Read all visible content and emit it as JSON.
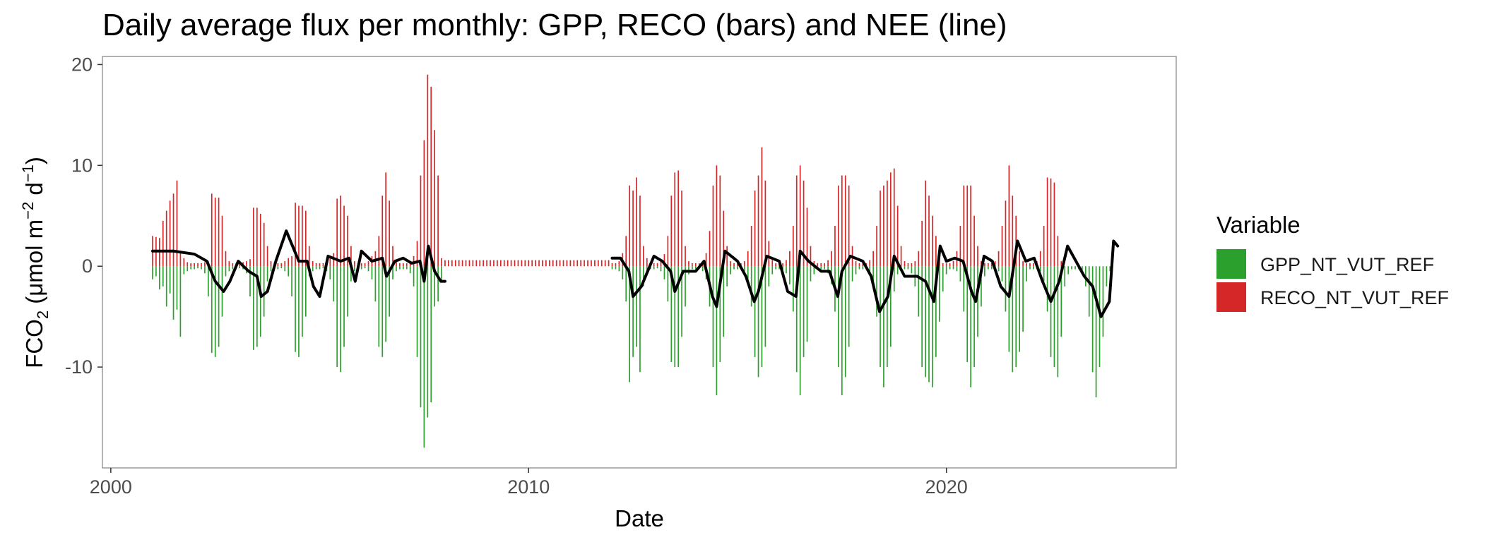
{
  "chart_data": {
    "type": "bar",
    "title": "Daily average flux per monthly: GPP, RECO (bars) and NEE (line)",
    "xlabel": "Date",
    "ylabel": {
      "main": "FCO",
      "sub_2": "2",
      "unit_open": " (μmol m",
      "sup_minus2": "−2",
      "unit_mid": " d",
      "sup_minus1": "−1",
      "unit_close": ")"
    },
    "xlim": [
      1999.8,
      2025.5
    ],
    "ylim": [
      -20.0,
      20.8
    ],
    "x_ticks": [
      2000,
      2010,
      2020
    ],
    "x_tick_labels": [
      "2000",
      "2010",
      "2020"
    ],
    "y_ticks": [
      -10,
      0,
      10,
      20
    ],
    "y_tick_labels": [
      "-10",
      "0",
      "10",
      "20"
    ],
    "grid": false,
    "legend": {
      "title": "Variable",
      "position": "right",
      "entries": [
        {
          "name": "GPP_NT_VUT_REF",
          "color": "#2ca02c"
        },
        {
          "name": "RECO_NT_VUT_REF",
          "color": "#d62728"
        }
      ]
    },
    "series": [
      {
        "name": "GPP_NT_VUT_REF",
        "color": "#2ca02c",
        "style": "monthly-bars",
        "x_start": 2001.0,
        "x_step": 0.08333,
        "values": [
          -1.3,
          -1.0,
          -2.3,
          -2.0,
          -4.0,
          -2.7,
          -5.3,
          -4.3,
          -7.0,
          -0.8,
          -0.5,
          -0.3,
          -0.3,
          -0.2,
          -0.3,
          -0.7,
          -3.0,
          -8.6,
          -9.0,
          -8.0,
          -5.0,
          -1.0,
          -0.5,
          -0.3,
          -0.3,
          -0.2,
          -0.3,
          -0.7,
          -3.0,
          -8.3,
          -8.0,
          -7.0,
          -5.0,
          -1.5,
          -0.5,
          -0.3,
          -0.3,
          -0.2,
          -0.5,
          -1.0,
          -3.0,
          -8.5,
          -9.0,
          -7.0,
          -5.0,
          -1.0,
          -0.5,
          -0.3,
          -0.3,
          -0.2,
          -0.5,
          -1.3,
          -3.5,
          -10.0,
          -10.5,
          -8.0,
          -5.0,
          -1.5,
          -0.5,
          -0.3,
          -0.3,
          -0.2,
          -0.5,
          -1.3,
          -3.5,
          -8.0,
          -9.0,
          -7.5,
          -5.0,
          -1.3,
          -0.5,
          -0.3,
          -0.3,
          -0.3,
          -0.7,
          -2.0,
          -9.0,
          -14.0,
          -18.0,
          -15.0,
          -13.5,
          -4.0,
          -3.5,
          -1.5,
          0.0,
          0.0,
          0.0,
          0.0,
          0.0,
          0.0,
          0.0,
          0.0,
          0.0,
          0.0,
          0.0,
          0.0,
          0.0,
          0.0,
          0.0,
          0.0,
          0.0,
          0.0,
          0.0,
          0.0,
          0.0,
          0.0,
          0.0,
          0.0,
          0.0,
          0.0,
          0.0,
          0.0,
          0.0,
          0.0,
          0.0,
          0.0,
          0.0,
          0.0,
          0.0,
          0.0,
          0.0,
          0.0,
          0.0,
          0.0,
          0.0,
          0.0,
          0.0,
          0.0,
          0.0,
          0.0,
          0.0,
          0.0,
          -0.3,
          -0.3,
          -0.5,
          -1.3,
          -3.5,
          -11.5,
          -9.0,
          -8.0,
          -10.5,
          -2.0,
          -0.8,
          -0.3,
          -0.3,
          -0.2,
          -0.5,
          -1.3,
          -3.5,
          -9.5,
          -10.0,
          -10.0,
          -7.0,
          -4.0,
          -0.8,
          -0.3,
          -0.3,
          -0.3,
          -0.5,
          -1.3,
          -4.0,
          -10.0,
          -12.8,
          -9.5,
          -7.0,
          -2.0,
          -0.8,
          -0.3,
          -0.3,
          -0.2,
          -0.5,
          -1.5,
          -4.0,
          -9.0,
          -11.0,
          -10.0,
          -8.0,
          -2.0,
          -0.8,
          -0.3,
          -0.3,
          -0.3,
          -0.7,
          -1.8,
          -4.5,
          -10.5,
          -12.8,
          -9.0,
          -7.5,
          -1.5,
          -0.8,
          -0.3,
          -0.3,
          -0.3,
          -0.7,
          -1.8,
          -4.5,
          -10.0,
          -12.8,
          -11.0,
          -8.0,
          -1.5,
          -0.8,
          -0.3,
          -0.3,
          -0.3,
          -0.7,
          -2.0,
          -5.0,
          -10.0,
          -12.0,
          -10.0,
          -8.0,
          -2.5,
          -0.8,
          -0.3,
          -0.3,
          -0.3,
          -0.7,
          -2.0,
          -5.0,
          -10.0,
          -11.0,
          -11.5,
          -12.0,
          -9.0,
          -5.5,
          -2.5,
          -0.8,
          -0.3,
          -0.3,
          -0.5,
          -1.5,
          -4.5,
          -9.5,
          -12.0,
          -10.0,
          -7.0,
          -4.0,
          -1.0,
          -0.3,
          -0.3,
          -0.3,
          -0.5,
          -1.5,
          -4.5,
          -8.5,
          -10.5,
          -10.0,
          -8.5,
          -6.5,
          -1.5,
          -0.3,
          -0.3,
          -0.3,
          -0.5,
          -1.5,
          -4.5,
          -9.0,
          -10.0,
          -11.0,
          -7.0,
          -2.0,
          -0.8,
          -0.3,
          -0.3,
          -0.3,
          -0.5,
          -2.0,
          -5.0,
          -10.5,
          -13.0,
          -10.0,
          -7.0,
          -2.0,
          -0.5
        ]
      },
      {
        "name": "RECO_NT_VUT_REF",
        "color": "#d62728",
        "style": "monthly-bars",
        "x_start": 2001.0,
        "x_step": 0.08333,
        "values": [
          3.0,
          2.9,
          2.8,
          4.5,
          5.5,
          6.5,
          7.2,
          8.5,
          1.5,
          0.8,
          0.4,
          0.3,
          0.3,
          0.3,
          0.3,
          0.4,
          0.5,
          7.2,
          6.8,
          6.8,
          5.0,
          1.5,
          0.5,
          0.3,
          0.3,
          0.3,
          0.4,
          0.5,
          0.7,
          5.8,
          5.8,
          5.2,
          4.3,
          2.0,
          0.5,
          0.4,
          0.3,
          0.3,
          0.5,
          0.8,
          1.0,
          6.3,
          6.0,
          6.0,
          5.5,
          2.0,
          0.5,
          0.3,
          0.3,
          0.3,
          0.5,
          0.8,
          1.3,
          6.7,
          7.0,
          6.0,
          5.0,
          2.0,
          0.5,
          0.3,
          0.3,
          0.3,
          0.5,
          1.0,
          1.5,
          3.0,
          7.0,
          9.3,
          6.5,
          2.0,
          0.5,
          0.3,
          0.3,
          0.3,
          0.5,
          1.0,
          2.5,
          9.0,
          12.5,
          19.0,
          17.8,
          13.5,
          9.0,
          0.8,
          0.6,
          0.6,
          0.6,
          0.6,
          0.6,
          0.6,
          0.6,
          0.6,
          0.6,
          0.6,
          0.6,
          0.6,
          0.6,
          0.6,
          0.6,
          0.6,
          0.6,
          0.6,
          0.6,
          0.6,
          0.6,
          0.6,
          0.6,
          0.6,
          0.6,
          0.6,
          0.6,
          0.6,
          0.6,
          0.6,
          0.6,
          0.6,
          0.6,
          0.6,
          0.6,
          0.6,
          0.6,
          0.6,
          0.6,
          0.6,
          0.6,
          0.6,
          0.6,
          0.6,
          0.6,
          0.6,
          0.6,
          0.6,
          0.3,
          0.3,
          0.5,
          1.3,
          3.0,
          8.0,
          7.5,
          8.8,
          7.0,
          2.0,
          0.8,
          0.3,
          0.3,
          0.3,
          0.5,
          1.2,
          3.0,
          7.0,
          9.3,
          9.5,
          7.5,
          2.0,
          0.5,
          0.3,
          0.3,
          0.3,
          0.5,
          1.3,
          3.5,
          8.0,
          10.0,
          9.0,
          5.5,
          2.0,
          0.5,
          0.3,
          0.3,
          0.3,
          0.5,
          1.5,
          4.0,
          7.5,
          9.0,
          11.8,
          8.5,
          2.5,
          0.6,
          0.3,
          0.3,
          0.3,
          0.6,
          1.5,
          4.0,
          9.0,
          10.0,
          8.5,
          5.8,
          2.0,
          0.5,
          0.3,
          0.3,
          0.3,
          0.6,
          1.5,
          4.0,
          8.0,
          9.0,
          9.0,
          8.0,
          2.0,
          0.5,
          0.3,
          0.3,
          0.3,
          0.6,
          1.5,
          4.0,
          7.5,
          8.0,
          8.5,
          9.3,
          9.7,
          6.0,
          2.0,
          0.5,
          0.3,
          0.3,
          0.5,
          1.5,
          4.5,
          8.5,
          7.0,
          5.0,
          3.0,
          0.8,
          0.3,
          0.3,
          0.3,
          0.5,
          1.5,
          4.0,
          8.0,
          8.0,
          8.0,
          5.0,
          2.0,
          0.5,
          0.3,
          0.3,
          0.3,
          0.5,
          1.5,
          4.0,
          6.5,
          10.0,
          7.0,
          5.0,
          1.5,
          0.5,
          0.3,
          0.3,
          0.3,
          0.5,
          1.5,
          4.0,
          8.8,
          8.7,
          8.3,
          3.0,
          0.5
        ]
      },
      {
        "name": "NEE",
        "color": "#000000",
        "style": "line",
        "gaps": [
          [
            2008.0,
            2012.0
          ]
        ],
        "x": [
          2001.0,
          2001.5,
          2002.0,
          2002.3,
          2002.5,
          2002.7,
          2002.85,
          2003.05,
          2003.3,
          2003.5,
          2003.6,
          2003.75,
          2003.95,
          2004.2,
          2004.5,
          2004.7,
          2004.85,
          2005.0,
          2005.2,
          2005.5,
          2005.7,
          2005.85,
          2006.0,
          2006.25,
          2006.5,
          2006.6,
          2006.8,
          2007.0,
          2007.2,
          2007.4,
          2007.5,
          2007.6,
          2007.75,
          2007.9,
          2008.0,
          2012.0,
          2012.2,
          2012.4,
          2012.5,
          2012.7,
          2013.0,
          2013.2,
          2013.4,
          2013.5,
          2013.7,
          2014.0,
          2014.2,
          2014.4,
          2014.5,
          2014.7,
          2015.0,
          2015.2,
          2015.4,
          2015.5,
          2015.7,
          2016.0,
          2016.2,
          2016.4,
          2016.5,
          2016.7,
          2017.0,
          2017.2,
          2017.4,
          2017.5,
          2017.7,
          2018.0,
          2018.2,
          2018.4,
          2018.6,
          2018.75,
          2019.0,
          2019.3,
          2019.5,
          2019.7,
          2019.85,
          2020.0,
          2020.2,
          2020.4,
          2020.6,
          2020.7,
          2020.9,
          2021.1,
          2021.3,
          2021.5,
          2021.7,
          2021.9,
          2022.1,
          2022.3,
          2022.5,
          2022.7,
          2022.9,
          2023.1,
          2023.3,
          2023.5,
          2023.7,
          2023.9,
          2024.0,
          2024.1
        ],
        "y": [
          1.5,
          1.5,
          1.2,
          0.5,
          -1.5,
          -2.5,
          -1.5,
          0.5,
          -0.5,
          -1.0,
          -3.0,
          -2.5,
          0.5,
          3.5,
          0.5,
          0.5,
          -2.0,
          -3.0,
          1.0,
          0.5,
          0.8,
          -1.5,
          1.5,
          0.5,
          0.8,
          -1.0,
          0.5,
          0.8,
          0.3,
          0.5,
          -1.5,
          2.0,
          -0.5,
          -1.5,
          -1.5,
          0.8,
          0.8,
          -0.5,
          -3.0,
          -2.0,
          1.0,
          0.5,
          -0.5,
          -2.5,
          -0.5,
          -0.5,
          0.5,
          -3.0,
          -4.0,
          1.5,
          0.5,
          -1.0,
          -3.5,
          -2.5,
          1.0,
          0.5,
          -2.5,
          -3.0,
          1.5,
          0.5,
          -0.5,
          -0.5,
          -3.0,
          -0.5,
          1.0,
          0.5,
          -1.0,
          -4.5,
          -3.0,
          1.0,
          -1.0,
          -1.0,
          -1.5,
          -3.5,
          2.0,
          0.5,
          0.8,
          0.5,
          -2.5,
          -3.5,
          1.0,
          0.5,
          -2.0,
          -3.0,
          2.5,
          0.5,
          0.8,
          -1.5,
          -3.5,
          -1.5,
          2.0,
          0.5,
          -1.0,
          -2.0,
          -5.0,
          -3.5,
          2.5,
          2.0
        ]
      }
    ]
  }
}
